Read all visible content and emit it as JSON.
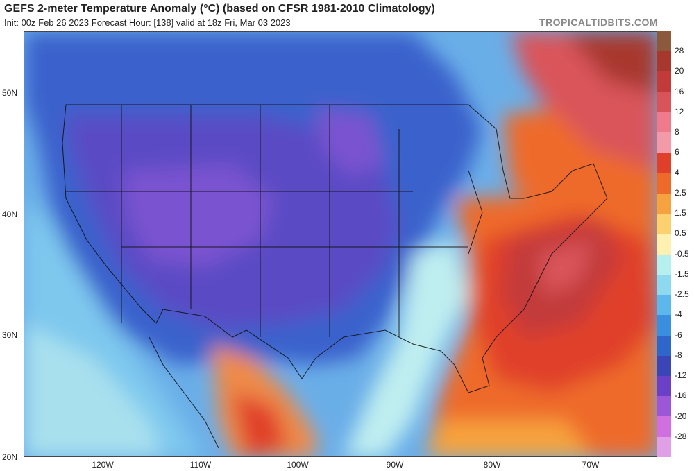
{
  "header": {
    "title": "GEFS 2-meter Temperature Anomaly (°C) (based on CFSR 1981-2010 Climatology)",
    "subtitle": "Init: 00z Feb 26 2023   Forecast Hour: [138]   valid at 18z Fri, Mar 03 2023",
    "brand": "TROPICALTIDBITS.COM"
  },
  "axes": {
    "latitudes": [
      "50N",
      "40N",
      "30N",
      "20N"
    ],
    "longitudes": [
      "120W",
      "110W",
      "100W",
      "90W",
      "80W",
      "70W"
    ]
  },
  "colorbar": {
    "labels": [
      "28",
      "20",
      "16",
      "12",
      "8",
      "6",
      "4",
      "2.5",
      "1.5",
      "0.5",
      "-0.5",
      "-1.5",
      "-2.5",
      "-4",
      "-6",
      "-8",
      "-12",
      "-16",
      "-20",
      "-28"
    ],
    "colors": [
      "#8b5a3c",
      "#a8382e",
      "#c23a3a",
      "#d9545a",
      "#ee7a8a",
      "#f29aa8",
      "#e0402a",
      "#ee6a2a",
      "#f6a23e",
      "#fbd06e",
      "#fdf0b0",
      "#b6f0ee",
      "#8ed8f0",
      "#5cb8ec",
      "#3a8ee0",
      "#2e66cc",
      "#3a46b8",
      "#6a40c8",
      "#9c56d8",
      "#d070e0",
      "#e0a0e8"
    ]
  }
}
